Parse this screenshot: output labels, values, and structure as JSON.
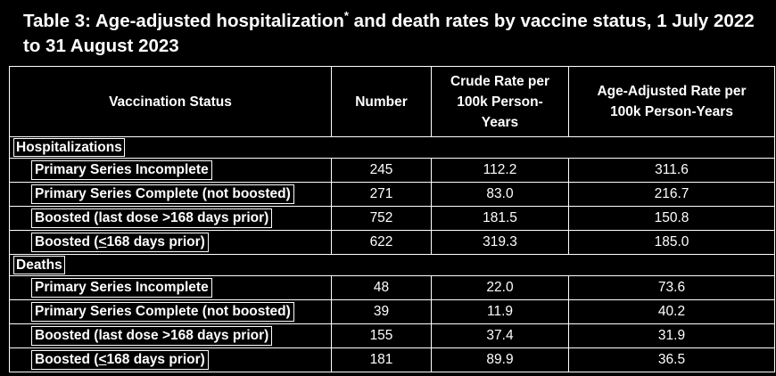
{
  "title": {
    "main": "Table 3: Age-adjusted hospitalization",
    "sup": "*",
    "rest": " and death rates by vaccine status, 1 July 2022 to 31 August 2023"
  },
  "table": {
    "headers": [
      "Vaccination Status",
      "Number",
      "Crude Rate per 100k Person-Years",
      "Age-Adjusted Rate per 100k Person-Years"
    ],
    "groups": [
      {
        "label": "Hospitalizations",
        "rows": [
          {
            "status": "Primary Series Incomplete",
            "number": "245",
            "crude": "112.2",
            "adjusted": "311.6"
          },
          {
            "status": "Primary Series Complete (not boosted)",
            "number": "271",
            "crude": "83.0",
            "adjusted": "216.7"
          },
          {
            "status": "Boosted (last dose >168 days prior)",
            "number": "752",
            "crude": "181.5",
            "adjusted": "150.8"
          },
          {
            "status_pre": "Boosted (",
            "status_u": "<",
            "status_post": "168 days prior)",
            "number": "622",
            "crude": "319.3",
            "adjusted": "185.0"
          }
        ]
      },
      {
        "label": "Deaths",
        "rows": [
          {
            "status": "Primary Series Incomplete",
            "number": "48",
            "crude": "22.0",
            "adjusted": "73.6"
          },
          {
            "status": "Primary Series Complete (not boosted)",
            "number": "39",
            "crude": "11.9",
            "adjusted": "40.2"
          },
          {
            "status": "Boosted (last dose >168 days prior)",
            "number": "155",
            "crude": "37.4",
            "adjusted": "31.9"
          },
          {
            "status_pre": "Boosted (",
            "status_u": "<",
            "status_post": "168 days prior)",
            "number": "181",
            "crude": "89.9",
            "adjusted": "36.5"
          }
        ]
      }
    ]
  }
}
